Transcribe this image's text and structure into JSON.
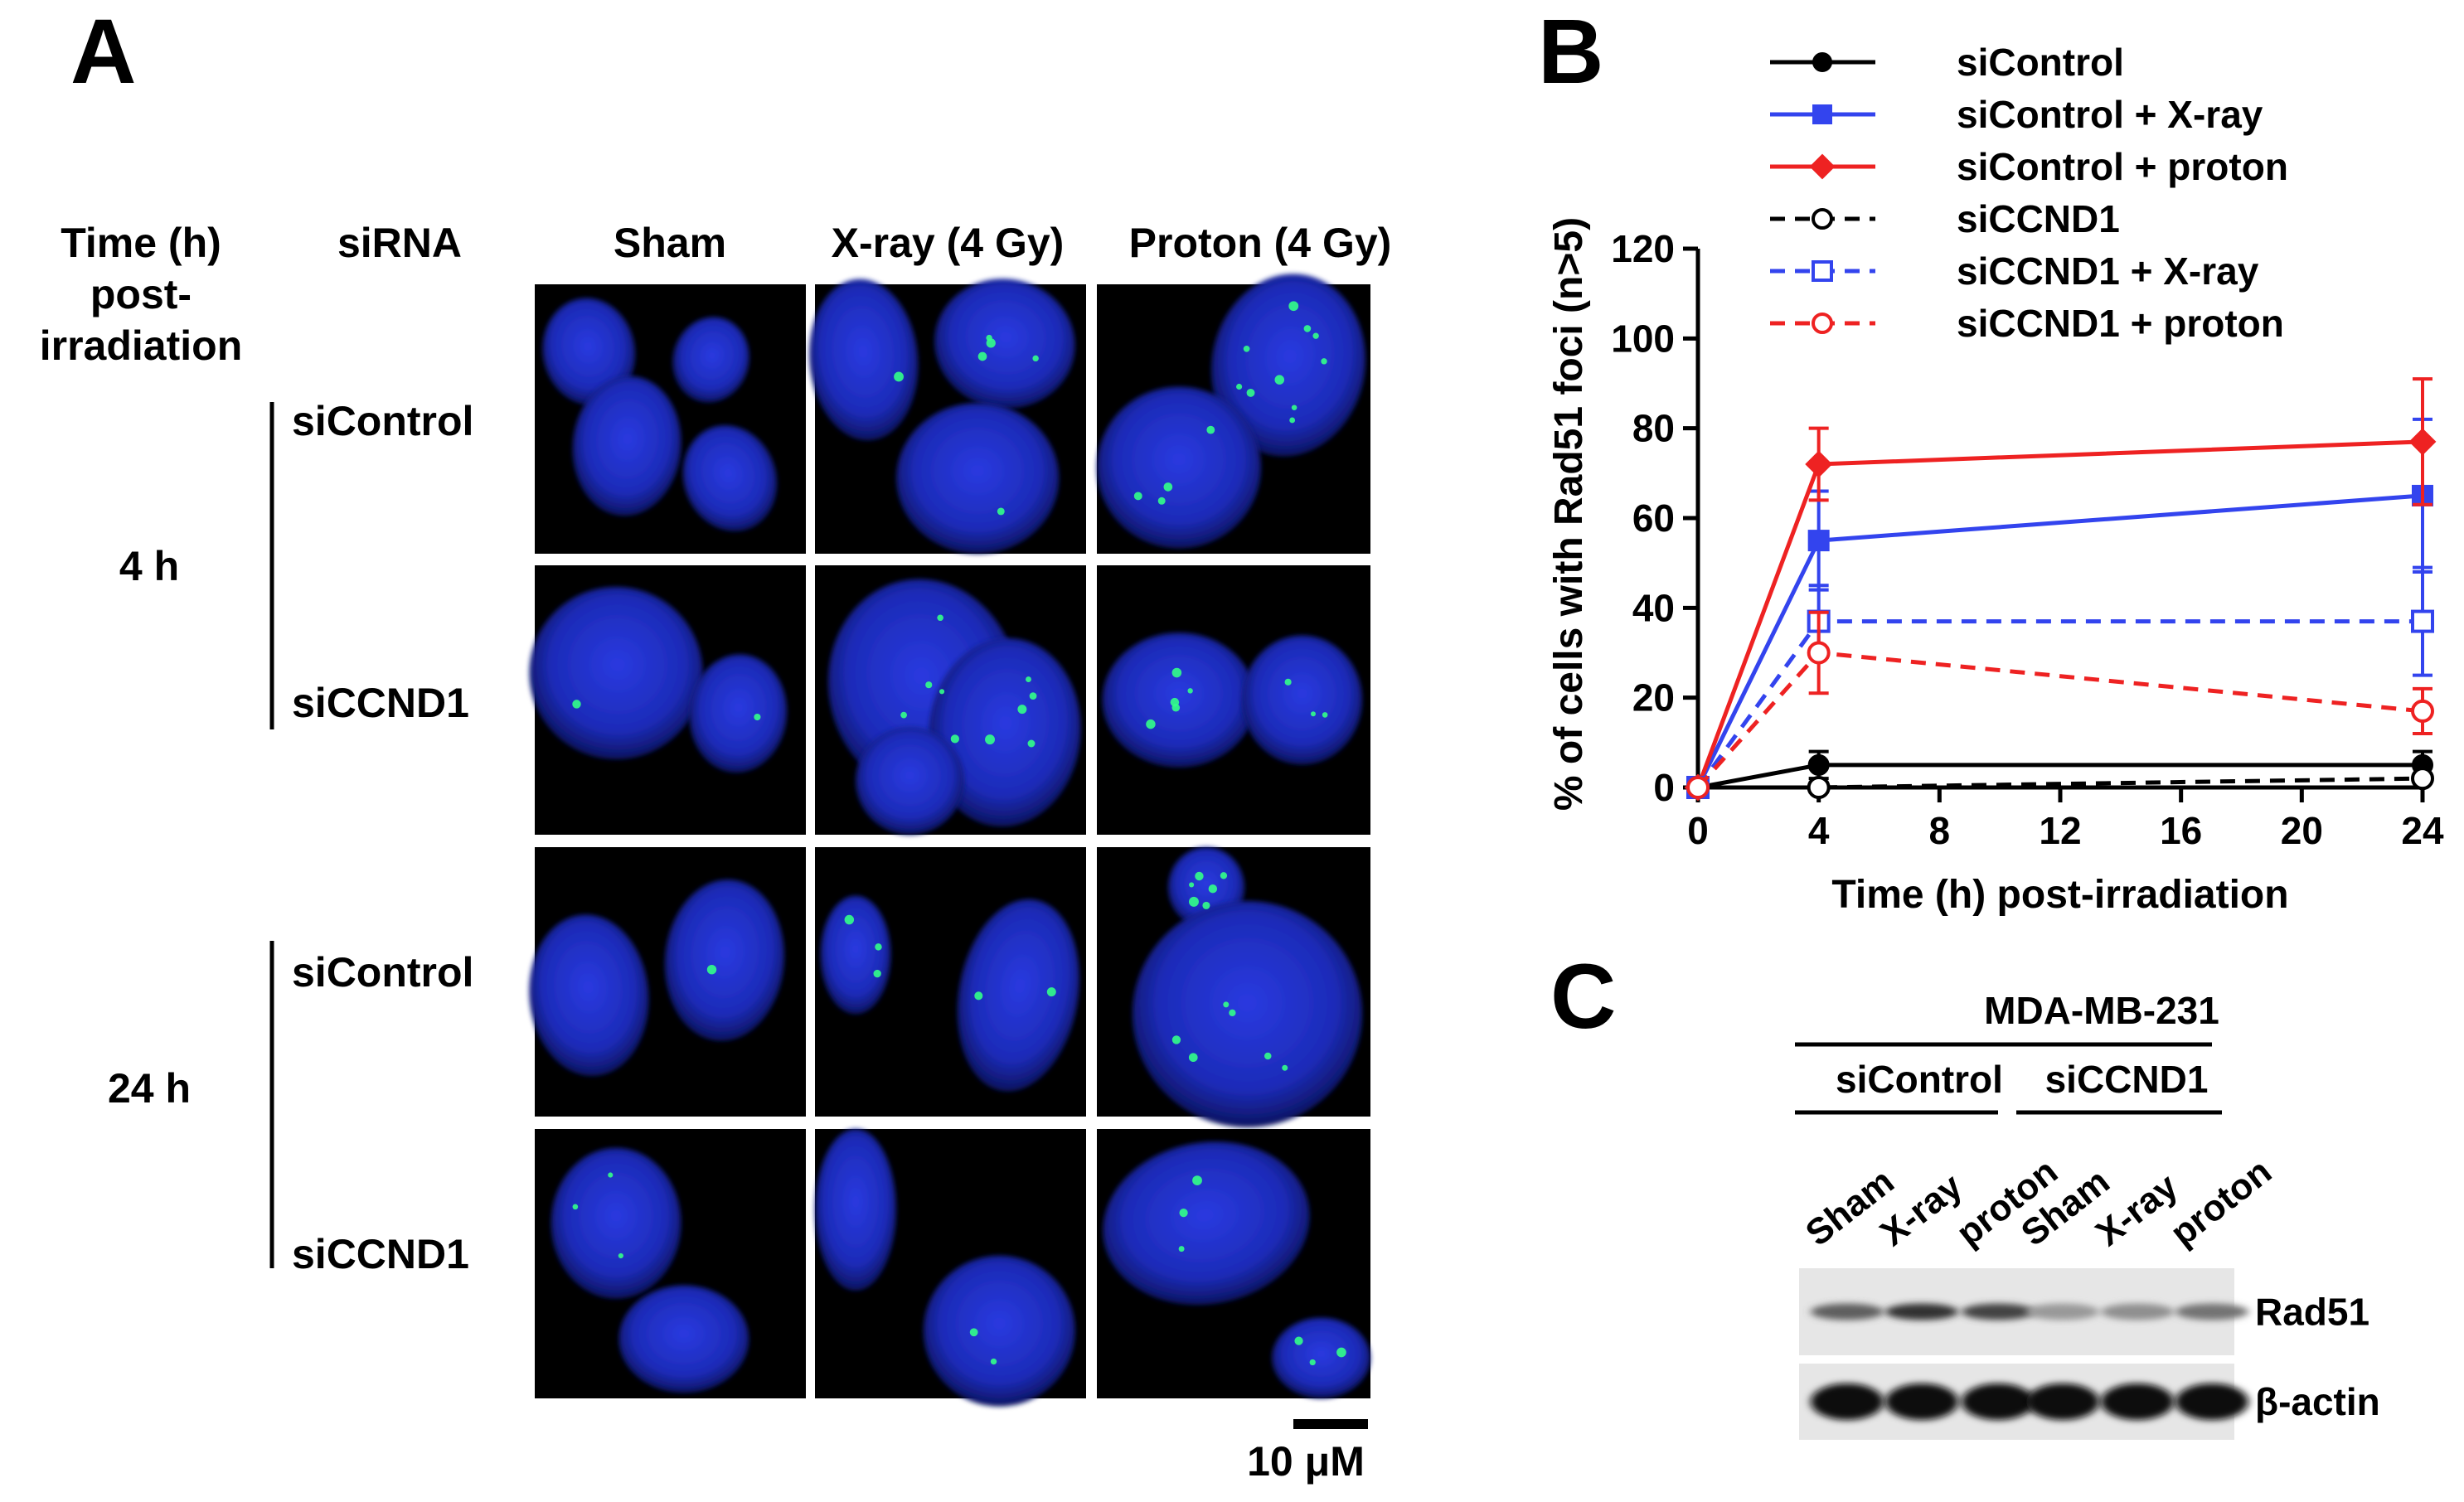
{
  "panel_a": {
    "label": "A",
    "headers": {
      "time": "Time (h)",
      "post": "post-",
      "irradiation": "irradiation",
      "sirna": "siRNA",
      "columns": [
        "Sham",
        "X-ray (4 Gy)",
        "Proton (4 Gy)"
      ]
    },
    "groups": [
      {
        "time": "4 h",
        "rows": [
          "siControl",
          "siCCND1"
        ]
      },
      {
        "time": "24 h",
        "rows": [
          "siControl",
          "siCCND1"
        ]
      }
    ],
    "scale_bar": "10 μM",
    "colors": {
      "nucleus": "#1a2fd0",
      "foci": "#33ff88",
      "background": "#000000"
    }
  },
  "panel_b": {
    "label": "B",
    "chart_data": {
      "type": "line",
      "xlabel": "Time (h) post-irradiation",
      "ylabel": "% of cells with Rad51 foci (n>5)",
      "xlim": [
        0,
        24
      ],
      "ylim": [
        0,
        120
      ],
      "xticks": [
        0,
        4,
        8,
        12,
        16,
        20,
        24
      ],
      "yticks": [
        0,
        20,
        40,
        60,
        80,
        100,
        120
      ],
      "x": [
        0,
        4,
        24
      ],
      "grid": false,
      "legend_position": "top-right",
      "series": [
        {
          "name": "siControl",
          "values": [
            0,
            5,
            5
          ],
          "errors": [
            0,
            3,
            3
          ],
          "color": "#000000",
          "dash": "solid",
          "marker": "circle"
        },
        {
          "name": "siControl + X-ray",
          "values": [
            0,
            55,
            65
          ],
          "errors": [
            0,
            11,
            17
          ],
          "color": "#3344ee",
          "dash": "solid",
          "marker": "square"
        },
        {
          "name": "siControl + proton",
          "values": [
            0,
            72,
            77
          ],
          "errors": [
            0,
            8,
            14
          ],
          "color": "#ee2222",
          "dash": "solid",
          "marker": "diamond"
        },
        {
          "name": "siCCND1",
          "values": [
            0,
            0,
            2
          ],
          "errors": [
            0,
            1,
            1
          ],
          "color": "#000000",
          "dash": "dashed",
          "marker": "open-circle"
        },
        {
          "name": "siCCND1 + X-ray",
          "values": [
            0,
            37,
            37
          ],
          "errors": [
            0,
            8,
            12
          ],
          "color": "#3344ee",
          "dash": "dashed",
          "marker": "open-square"
        },
        {
          "name": "siCCND1 + proton",
          "values": [
            0,
            30,
            17
          ],
          "errors": [
            0,
            9,
            5
          ],
          "color": "#ee2222",
          "dash": "dashed",
          "marker": "open-circle"
        }
      ]
    }
  },
  "panel_c": {
    "label": "C",
    "cell_line": "MDA-MB-231",
    "groups": [
      "siControl",
      "siCCND1"
    ],
    "lanes": [
      "Sham",
      "X-ray",
      "proton",
      "Sham",
      "X-ray",
      "proton"
    ],
    "blots": [
      {
        "name": "Rad51",
        "intensities": [
          0.55,
          0.8,
          0.7,
          0.25,
          0.3,
          0.45
        ]
      },
      {
        "name": "β-actin",
        "intensities": [
          1,
          1,
          1,
          1,
          1,
          1
        ]
      }
    ]
  }
}
